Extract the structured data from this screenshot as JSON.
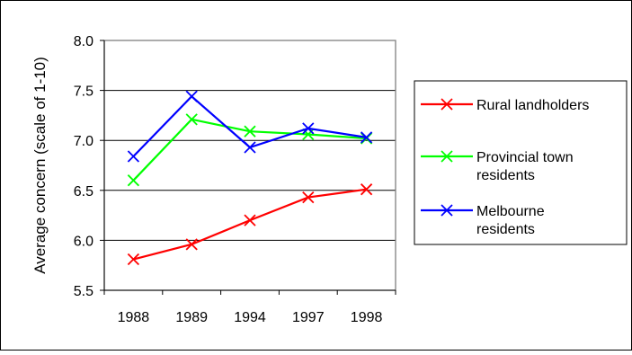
{
  "chart_data": {
    "type": "line",
    "title": "",
    "xlabel": "",
    "ylabel": "Average concern (scale of 1-10)",
    "categories": [
      "1988",
      "1989",
      "1994",
      "1997",
      "1998"
    ],
    "ylim": [
      5.5,
      8.0
    ],
    "yticks": [
      "5.5",
      "6.0",
      "6.5",
      "7.0",
      "7.5",
      "8.0"
    ],
    "grid": true,
    "legend_position": "right",
    "series": [
      {
        "name": "Rural landholders",
        "color": "#ff0000",
        "values": [
          5.81,
          5.96,
          6.2,
          6.43,
          6.51
        ]
      },
      {
        "name": "Provincial town residents",
        "color": "#00ff00",
        "values": [
          6.6,
          7.21,
          7.09,
          7.06,
          7.02
        ]
      },
      {
        "name": "Melbourne residents",
        "color": "#0000ff",
        "values": [
          6.84,
          7.44,
          6.93,
          7.12,
          7.03
        ]
      }
    ],
    "legend": [
      {
        "lines": [
          "Rural landholders"
        ]
      },
      {
        "lines": [
          "Provincial town",
          "residents"
        ]
      },
      {
        "lines": [
          "Melbourne",
          "residents"
        ]
      }
    ]
  }
}
